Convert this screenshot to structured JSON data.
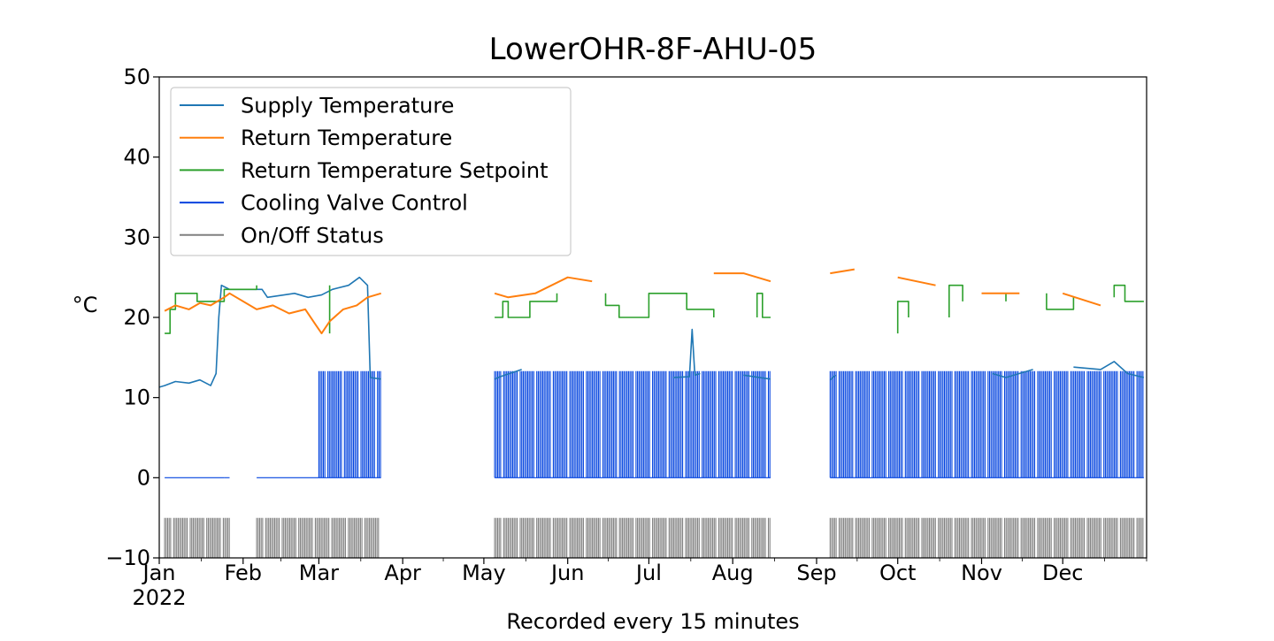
{
  "chart_data": {
    "type": "line",
    "title": "LowerOHR-8F-AHU-05",
    "xlabel": "Recorded every 15 minutes",
    "ylabel": "°C",
    "ylim": [
      -10,
      50
    ],
    "yticks": [
      {
        "value": -10,
        "label": "−10"
      },
      {
        "value": 0,
        "label": "0"
      },
      {
        "value": 10,
        "label": "10"
      },
      {
        "value": 20,
        "label": "20"
      },
      {
        "value": 30,
        "label": "30"
      },
      {
        "value": 40,
        "label": "40"
      },
      {
        "value": 50,
        "label": "50"
      }
    ],
    "xlim": [
      "2022-01-01",
      "2022-12-31"
    ],
    "xticks": [
      {
        "date": "2022-01-01",
        "label": "Jan"
      },
      {
        "date": "2022-02-01",
        "label": "Feb"
      },
      {
        "date": "2022-03-01",
        "label": "Mar"
      },
      {
        "date": "2022-04-01",
        "label": "Apr"
      },
      {
        "date": "2022-05-01",
        "label": "May"
      },
      {
        "date": "2022-06-01",
        "label": "Jun"
      },
      {
        "date": "2022-07-01",
        "label": "Jul"
      },
      {
        "date": "2022-08-01",
        "label": "Aug"
      },
      {
        "date": "2022-09-01",
        "label": "Sep"
      },
      {
        "date": "2022-10-01",
        "label": "Oct"
      },
      {
        "date": "2022-11-01",
        "label": "Nov"
      },
      {
        "date": "2022-12-01",
        "label": "Dec"
      }
    ],
    "year_label": "2022",
    "legend_position": "top-left",
    "grid": false,
    "series": [
      {
        "name": "Supply Temperature",
        "color": "#1f77b4",
        "points": [
          [
            "2022-01-01",
            11.3
          ],
          [
            "2022-01-03",
            11.5
          ],
          [
            "2022-01-07",
            12.0
          ],
          [
            "2022-01-12",
            11.8
          ],
          [
            "2022-01-16",
            12.2
          ],
          [
            "2022-01-20",
            11.5
          ],
          [
            "2022-01-22",
            13.0
          ],
          [
            "2022-01-23",
            20.0
          ],
          [
            "2022-01-24",
            24.0
          ],
          [
            "2022-01-27",
            23.5
          ],
          [
            "2022-02-08",
            23.5
          ],
          [
            "2022-02-10",
            22.5
          ],
          [
            "2022-02-20",
            23.0
          ],
          [
            "2022-02-25",
            22.5
          ],
          [
            "2022-03-02",
            22.8
          ],
          [
            "2022-03-06",
            23.5
          ],
          [
            "2022-03-12",
            24.0
          ],
          [
            "2022-03-16",
            25.0
          ],
          [
            "2022-03-19",
            24.0
          ],
          [
            "2022-03-20",
            12.5
          ],
          [
            "2022-03-24",
            12.3
          ],
          [
            "2022-05-05",
            12.3
          ],
          [
            "2022-05-07",
            12.6
          ],
          [
            "2022-05-15",
            13.5
          ],
          [
            "2022-06-01",
            12.5
          ],
          [
            "2022-06-20",
            12.8
          ],
          [
            "2022-07-10",
            12.5
          ],
          [
            "2022-07-16",
            12.6
          ],
          [
            "2022-07-17",
            18.5
          ],
          [
            "2022-07-18",
            12.8
          ],
          [
            "2022-07-20",
            13.0
          ],
          [
            "2022-08-05",
            12.8
          ],
          [
            "2022-08-15",
            12.3
          ],
          [
            "2022-09-06",
            12.2
          ],
          [
            "2022-09-08",
            12.8
          ],
          [
            "2022-10-01",
            12.8
          ],
          [
            "2022-10-20",
            13.5
          ],
          [
            "2022-11-05",
            13.0
          ],
          [
            "2022-11-10",
            12.5
          ],
          [
            "2022-11-20",
            13.5
          ],
          [
            "2022-12-05",
            13.8
          ],
          [
            "2022-12-15",
            13.5
          ],
          [
            "2022-12-20",
            14.5
          ],
          [
            "2022-12-25",
            13.0
          ],
          [
            "2022-12-31",
            12.5
          ]
        ]
      },
      {
        "name": "Return Temperature",
        "color": "#ff7f0e",
        "points": [
          [
            "2022-01-03",
            20.8
          ],
          [
            "2022-01-07",
            21.5
          ],
          [
            "2022-01-12",
            21.0
          ],
          [
            "2022-01-16",
            21.8
          ],
          [
            "2022-01-20",
            21.5
          ],
          [
            "2022-01-25",
            22.5
          ],
          [
            "2022-01-27",
            23.0
          ],
          [
            "2022-02-06",
            21.0
          ],
          [
            "2022-02-12",
            21.5
          ],
          [
            "2022-02-18",
            20.5
          ],
          [
            "2022-02-24",
            21.0
          ],
          [
            "2022-02-28",
            19.0
          ],
          [
            "2022-03-02",
            18.0
          ],
          [
            "2022-03-05",
            19.5
          ],
          [
            "2022-03-10",
            21.0
          ],
          [
            "2022-03-15",
            21.5
          ],
          [
            "2022-03-19",
            22.5
          ],
          [
            "2022-03-24",
            23.0
          ],
          [
            "2022-05-05",
            23.0
          ],
          [
            "2022-05-10",
            22.5
          ],
          [
            "2022-05-20",
            23.0
          ],
          [
            "2022-06-01",
            25.0
          ],
          [
            "2022-06-10",
            24.5
          ],
          [
            "2022-06-25",
            25.0
          ],
          [
            "2022-07-10",
            25.5
          ],
          [
            "2022-07-25",
            25.5
          ],
          [
            "2022-08-05",
            25.5
          ],
          [
            "2022-08-15",
            24.5
          ],
          [
            "2022-09-06",
            25.5
          ],
          [
            "2022-09-15",
            26.0
          ],
          [
            "2022-10-01",
            25.0
          ],
          [
            "2022-10-15",
            24.0
          ],
          [
            "2022-11-01",
            23.0
          ],
          [
            "2022-11-15",
            23.0
          ],
          [
            "2022-12-01",
            23.0
          ],
          [
            "2022-12-15",
            21.5
          ],
          [
            "2022-12-31",
            20.5
          ]
        ]
      },
      {
        "name": "Return Temperature Setpoint",
        "color": "#2ca02c",
        "points": [
          [
            "2022-01-03",
            18
          ],
          [
            "2022-01-05",
            18
          ],
          [
            "2022-01-05",
            21
          ],
          [
            "2022-01-07",
            21
          ],
          [
            "2022-01-07",
            23
          ],
          [
            "2022-01-15",
            23
          ],
          [
            "2022-01-15",
            22
          ],
          [
            "2022-01-25",
            22
          ],
          [
            "2022-01-25",
            23.5
          ],
          [
            "2022-02-06",
            23.5
          ],
          [
            "2022-02-06",
            24
          ],
          [
            "2022-03-05",
            24
          ],
          [
            "2022-03-05",
            18
          ],
          [
            "2022-03-24",
            18
          ],
          [
            "2022-05-05",
            20
          ],
          [
            "2022-05-08",
            20
          ],
          [
            "2022-05-08",
            22
          ],
          [
            "2022-05-10",
            22
          ],
          [
            "2022-05-10",
            20
          ],
          [
            "2022-05-18",
            20
          ],
          [
            "2022-05-18",
            22
          ],
          [
            "2022-05-28",
            22
          ],
          [
            "2022-05-28",
            23
          ],
          [
            "2022-06-15",
            23
          ],
          [
            "2022-06-15",
            21.5
          ],
          [
            "2022-06-20",
            21.5
          ],
          [
            "2022-06-20",
            20
          ],
          [
            "2022-07-01",
            20
          ],
          [
            "2022-07-01",
            23
          ],
          [
            "2022-07-15",
            23
          ],
          [
            "2022-07-15",
            21
          ],
          [
            "2022-07-25",
            21
          ],
          [
            "2022-07-25",
            20
          ],
          [
            "2022-08-10",
            20
          ],
          [
            "2022-08-10",
            23
          ],
          [
            "2022-08-12",
            23
          ],
          [
            "2022-08-12",
            20
          ],
          [
            "2022-08-15",
            20
          ],
          [
            "2022-09-06",
            18
          ],
          [
            "2022-10-01",
            18
          ],
          [
            "2022-10-01",
            22
          ],
          [
            "2022-10-05",
            22
          ],
          [
            "2022-10-05",
            20
          ],
          [
            "2022-10-20",
            20
          ],
          [
            "2022-10-20",
            24
          ],
          [
            "2022-10-25",
            24
          ],
          [
            "2022-10-25",
            22
          ],
          [
            "2022-11-10",
            22
          ],
          [
            "2022-11-10",
            23
          ],
          [
            "2022-11-25",
            23
          ],
          [
            "2022-11-25",
            21
          ],
          [
            "2022-12-05",
            21
          ],
          [
            "2022-12-05",
            22.5
          ],
          [
            "2022-12-20",
            22.5
          ],
          [
            "2022-12-20",
            24
          ],
          [
            "2022-12-24",
            24
          ],
          [
            "2022-12-24",
            22
          ],
          [
            "2022-12-31",
            22
          ]
        ]
      },
      {
        "name": "Cooling Valve Control",
        "color": "#0343df",
        "style": "oscillating",
        "low": 0,
        "high": 13.3,
        "segments": [
          {
            "start": "2022-01-03",
            "end": "2022-01-25",
            "flat_value": 0
          },
          {
            "start": "2022-01-25",
            "end": "2022-01-27",
            "flat_value": 0
          },
          {
            "start": "2022-02-06",
            "end": "2022-03-01",
            "flat_value": 0
          },
          {
            "start": "2022-03-01",
            "end": "2022-03-24"
          },
          {
            "start": "2022-05-05",
            "end": "2022-08-15"
          },
          {
            "start": "2022-09-06",
            "end": "2022-12-31"
          }
        ]
      },
      {
        "name": "On/Off Status",
        "color": "#808080",
        "style": "oscillating",
        "low": -10,
        "high": -5,
        "segments": [
          {
            "start": "2022-01-03",
            "end": "2022-01-27"
          },
          {
            "start": "2022-02-06",
            "end": "2022-03-24"
          },
          {
            "start": "2022-05-05",
            "end": "2022-08-15"
          },
          {
            "start": "2022-09-06",
            "end": "2022-12-31"
          }
        ]
      }
    ]
  }
}
